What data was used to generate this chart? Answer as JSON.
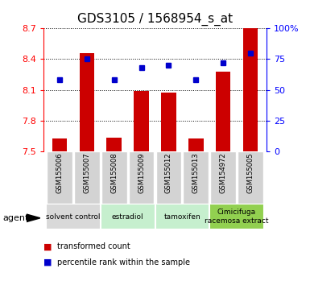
{
  "title": "GDS3105 / 1568954_s_at",
  "samples": [
    "GSM155006",
    "GSM155007",
    "GSM155008",
    "GSM155009",
    "GSM155012",
    "GSM155013",
    "GSM154972",
    "GSM155005"
  ],
  "red_values": [
    7.62,
    8.46,
    7.63,
    8.09,
    8.07,
    7.62,
    8.28,
    8.7
  ],
  "blue_percentiles": [
    58,
    75,
    58,
    68,
    70,
    58,
    72,
    80
  ],
  "ylim_left": [
    7.5,
    8.7
  ],
  "ylim_right": [
    0,
    100
  ],
  "yticks_left": [
    7.5,
    7.8,
    8.1,
    8.4,
    8.7
  ],
  "yticks_right": [
    0,
    25,
    50,
    75,
    100
  ],
  "ytick_labels_right": [
    "0",
    "25",
    "50",
    "75",
    "100%"
  ],
  "groups": [
    {
      "label": "solvent control",
      "start": 0,
      "end": 2,
      "color": "#d9d9d9"
    },
    {
      "label": "estradiol",
      "start": 2,
      "end": 4,
      "color": "#c6efce"
    },
    {
      "label": "tamoxifen",
      "start": 4,
      "end": 6,
      "color": "#c6efce"
    },
    {
      "label": "Cimicifuga\nracemosa extract",
      "start": 6,
      "end": 8,
      "color": "#92d050"
    }
  ],
  "bar_color": "#cc0000",
  "dot_color": "#0000cc",
  "bar_width": 0.55,
  "baseline": 7.5,
  "agent_label": "agent",
  "legend_red": "transformed count",
  "legend_blue": "percentile rank within the sample",
  "title_fontsize": 11,
  "tick_fontsize": 8,
  "label_fontsize": 6,
  "group_fontsize": 6.5
}
